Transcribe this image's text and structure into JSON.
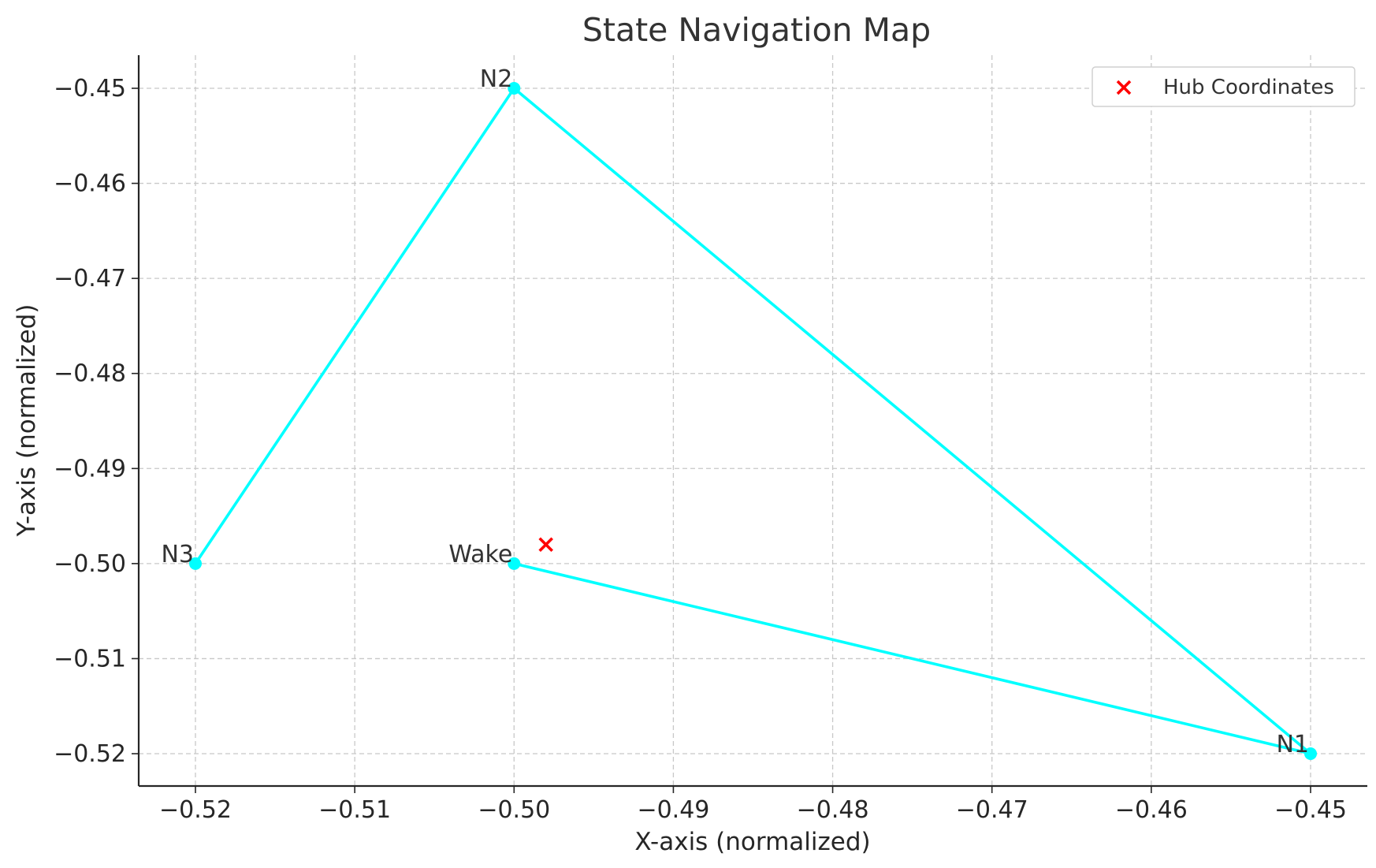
{
  "chart_data": {
    "type": "line",
    "title": "State Navigation Map",
    "xlabel": "X-axis (normalized)",
    "ylabel": "Y-axis (normalized)",
    "xlim": [
      -0.5235,
      -0.4465
    ],
    "ylim": [
      -0.5235,
      -0.4465
    ],
    "xticks": [
      -0.52,
      -0.51,
      -0.5,
      -0.49,
      -0.48,
      -0.47,
      -0.46,
      -0.45
    ],
    "yticks": [
      -0.45,
      -0.46,
      -0.47,
      -0.48,
      -0.49,
      -0.5,
      -0.51,
      -0.52
    ],
    "xtick_labels": [
      "−0.52",
      "−0.51",
      "−0.50",
      "−0.49",
      "−0.48",
      "−0.47",
      "−0.46",
      "−0.45"
    ],
    "ytick_labels": [
      "−0.45",
      "−0.46",
      "−0.47",
      "−0.48",
      "−0.49",
      "−0.50",
      "−0.51",
      "−0.52"
    ],
    "grid": true,
    "path": {
      "color": "#00ffff",
      "points": [
        {
          "label": "Wake",
          "x": -0.5,
          "y": -0.5
        },
        {
          "label": "N1",
          "x": -0.45,
          "y": -0.52
        },
        {
          "label": "N2",
          "x": -0.5,
          "y": -0.45
        },
        {
          "label": "N3",
          "x": -0.52,
          "y": -0.5
        }
      ]
    },
    "hub": {
      "name": "Hub Coordinates",
      "x": -0.498,
      "y": -0.498,
      "color": "#ff0000",
      "marker": "x"
    },
    "legend": {
      "position": "top-right",
      "entries": [
        "Hub Coordinates"
      ]
    }
  }
}
